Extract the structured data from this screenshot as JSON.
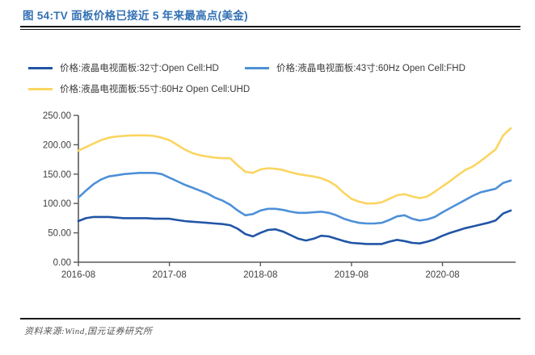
{
  "header": {
    "title": "图 54:TV 面板价格已接近 5 年来最高点(美金)"
  },
  "legend": [
    {
      "label": "价格:液晶电视面板:32寸:Open Cell:HD"
    },
    {
      "label": "价格:液晶电视面板:43寸:60Hz Open Cell:FHD"
    },
    {
      "label": "价格:液晶电视面板:55寸:60Hz Open Cell:UHD"
    }
  ],
  "footer": {
    "source": "资料来源:Wind,国元证券研究所"
  },
  "colors": {
    "title_blue": "#3371B3",
    "axis_text": "#404040",
    "axis_line": "#595959"
  },
  "chart_data": {
    "type": "line",
    "title": "TV 面板价格已接近 5 年来最高点(美金)",
    "xlabel": "",
    "ylabel": "",
    "ylim": [
      0,
      250
    ],
    "grid": false,
    "legend_position": "top",
    "y_ticks": [
      0,
      50,
      100,
      150,
      200,
      250
    ],
    "y_tick_labels": [
      "0.00",
      "50.00",
      "100.00",
      "150.00",
      "200.00",
      "250.00"
    ],
    "x_tick_labels": [
      "2016-08",
      "2017-08",
      "2018-08",
      "2019-08",
      "2020-08"
    ],
    "x_tick_indices": [
      0,
      12,
      24,
      36,
      48
    ],
    "x_months": [
      "2016-08",
      "2016-09",
      "2016-10",
      "2016-11",
      "2016-12",
      "2017-01",
      "2017-02",
      "2017-03",
      "2017-04",
      "2017-05",
      "2017-06",
      "2017-07",
      "2017-08",
      "2017-09",
      "2017-10",
      "2017-11",
      "2017-12",
      "2018-01",
      "2018-02",
      "2018-03",
      "2018-04",
      "2018-05",
      "2018-06",
      "2018-07",
      "2018-08",
      "2018-09",
      "2018-10",
      "2018-11",
      "2018-12",
      "2019-01",
      "2019-02",
      "2019-03",
      "2019-04",
      "2019-05",
      "2019-06",
      "2019-07",
      "2019-08",
      "2019-09",
      "2019-10",
      "2019-11",
      "2019-12",
      "2020-01",
      "2020-02",
      "2020-03",
      "2020-04",
      "2020-05",
      "2020-06",
      "2020-07",
      "2020-08",
      "2020-09",
      "2020-10",
      "2020-11",
      "2020-12",
      "2021-01",
      "2021-02",
      "2021-03",
      "2021-04",
      "2021-05"
    ],
    "series": [
      {
        "name": "价格:液晶电视面板:32寸:Open Cell:HD",
        "color": "#2155A6",
        "values": [
          70,
          75,
          77,
          77,
          77,
          76,
          75,
          75,
          75,
          75,
          74,
          74,
          74,
          72,
          70,
          69,
          68,
          67,
          66,
          65,
          63,
          57,
          48,
          44,
          50,
          55,
          56,
          52,
          46,
          40,
          37,
          40,
          45,
          44,
          40,
          36,
          33,
          32,
          31,
          31,
          31,
          35,
          38,
          36,
          33,
          32,
          35,
          39,
          45,
          50,
          54,
          58,
          61,
          64,
          67,
          71,
          83,
          88
        ]
      },
      {
        "name": "价格:液晶电视面板:43寸:60Hz Open Cell:FHD",
        "color": "#4E90D8",
        "values": [
          110,
          122,
          133,
          141,
          146,
          148,
          150,
          151,
          152,
          152,
          152,
          150,
          144,
          138,
          132,
          127,
          122,
          117,
          110,
          105,
          98,
          88,
          80,
          82,
          88,
          91,
          91,
          89,
          86,
          84,
          84,
          85,
          86,
          84,
          80,
          74,
          70,
          67,
          66,
          66,
          67,
          72,
          78,
          80,
          74,
          71,
          73,
          77,
          85,
          92,
          99,
          106,
          113,
          119,
          122,
          125,
          135,
          139
        ]
      },
      {
        "name": "价格:液晶电视面板:55寸:60Hz Open Cell:UHD",
        "color": "#FBD560",
        "values": [
          190,
          196,
          202,
          208,
          212,
          214,
          215,
          216,
          216,
          216,
          215,
          212,
          208,
          200,
          192,
          186,
          182,
          180,
          178,
          177,
          177,
          165,
          154,
          152,
          158,
          160,
          159,
          157,
          153,
          150,
          148,
          146,
          143,
          138,
          130,
          118,
          108,
          103,
          100,
          100,
          102,
          108,
          114,
          116,
          112,
          109,
          112,
          120,
          129,
          138,
          148,
          157,
          163,
          172,
          182,
          192,
          216,
          228
        ]
      }
    ]
  }
}
